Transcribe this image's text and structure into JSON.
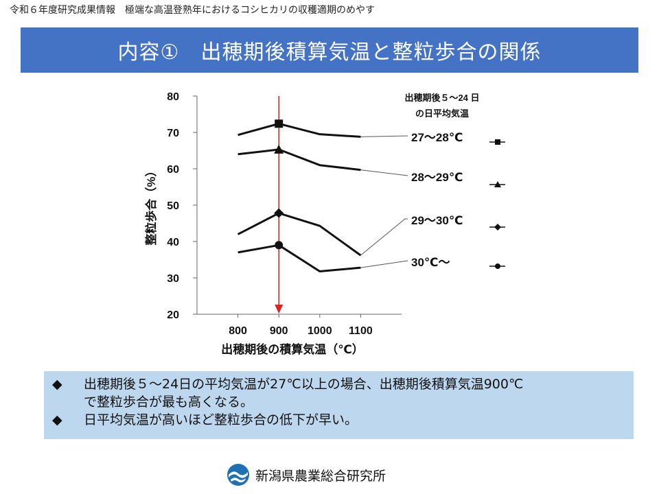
{
  "header": {
    "note": "令和６年度研究成果情報　極端な高温登熟年におけるコシヒカリの収穫適期のめやす"
  },
  "title": "内容①　出穂期後積算気温と整粒歩合の関係",
  "chart_data": {
    "type": "line",
    "xlabel": "出穂期後の積算気温（℃）",
    "ylabel": "整粒歩合（%）",
    "x": [
      800,
      900,
      1000,
      1100
    ],
    "x_tick_labels": [
      "800",
      "900",
      "1000",
      "1100"
    ],
    "xlim": [
      700,
      1200
    ],
    "ylim": [
      20,
      80
    ],
    "y_ticks": [
      20,
      30,
      40,
      50,
      60,
      70,
      80
    ],
    "legend_title": [
      "出穂期後５～24 日",
      "の日平均気温"
    ],
    "reference_line_x": 900,
    "reference_color": "#e02020",
    "series": [
      {
        "name": "27～28℃",
        "marker": "square",
        "values": [
          69.3,
          72.4,
          69.5,
          68.8
        ]
      },
      {
        "name": "28～29℃",
        "marker": "triangle",
        "values": [
          64.0,
          65.3,
          61.0,
          59.7
        ]
      },
      {
        "name": "29～30℃",
        "marker": "diamond",
        "values": [
          42.0,
          47.8,
          44.3,
          36.2
        ]
      },
      {
        "name": "30℃～",
        "marker": "circle",
        "values": [
          37.0,
          39.0,
          31.8,
          32.8
        ]
      }
    ]
  },
  "bullets": [
    {
      "mark": "◆",
      "lines": [
        "出穂期後５～24日の平均気温が27℃以上の場合、出穂期後積算気温900℃",
        "で整粒歩合が最も高くなる。"
      ]
    },
    {
      "mark": "◆",
      "lines": [
        "日平均気温が高いほど整粒歩合の低下が早い。"
      ]
    }
  ],
  "footer": {
    "org_name": "新潟県農業総合研究所",
    "logo_color": "#1f6fb5"
  }
}
